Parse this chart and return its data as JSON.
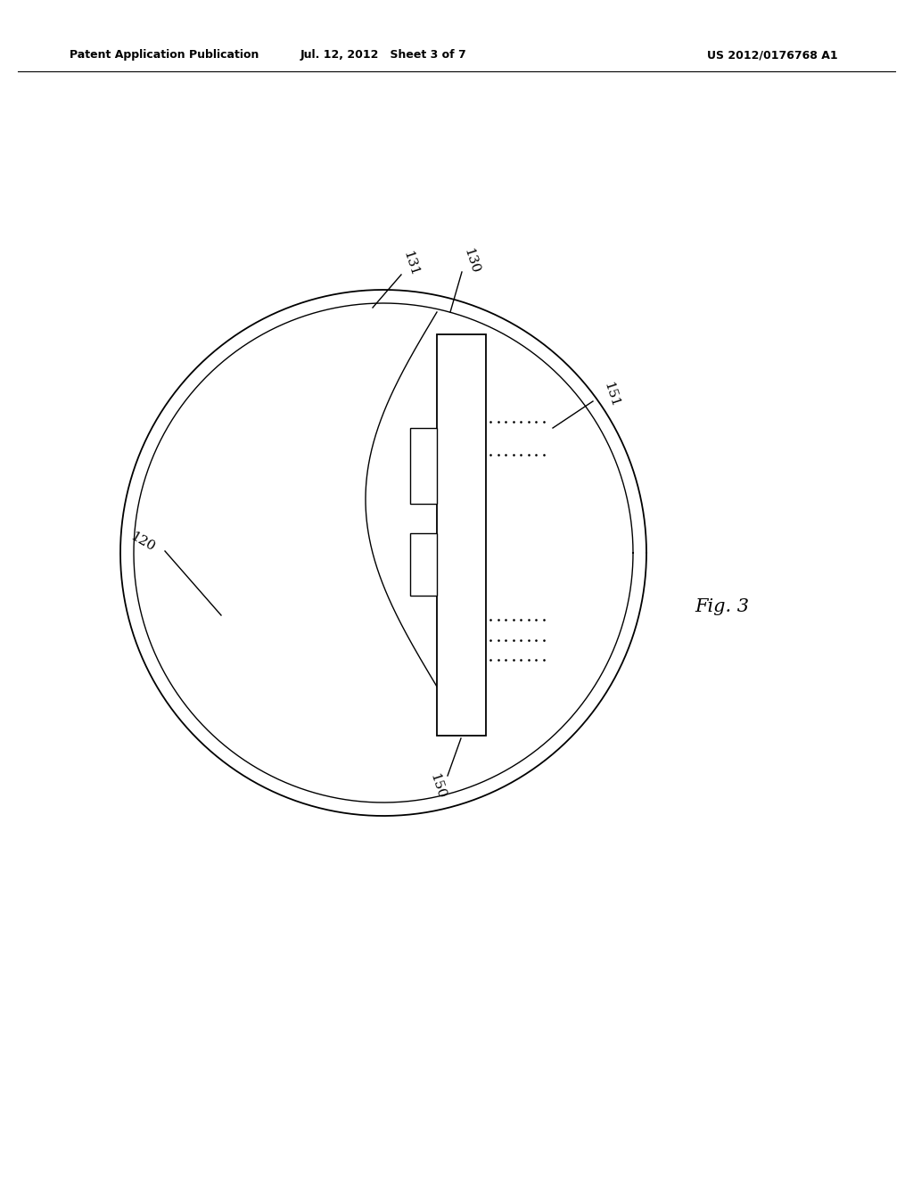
{
  "bg_color": "#ffffff",
  "line_color": "#000000",
  "header_left": "Patent Application Publication",
  "header_mid": "Jul. 12, 2012   Sheet 3 of 7",
  "header_right": "US 2012/0176768 A1",
  "fig_label": "Fig. 3",
  "label_120": "120",
  "label_130": "130",
  "label_131": "131",
  "label_150": "150",
  "label_151": "151"
}
